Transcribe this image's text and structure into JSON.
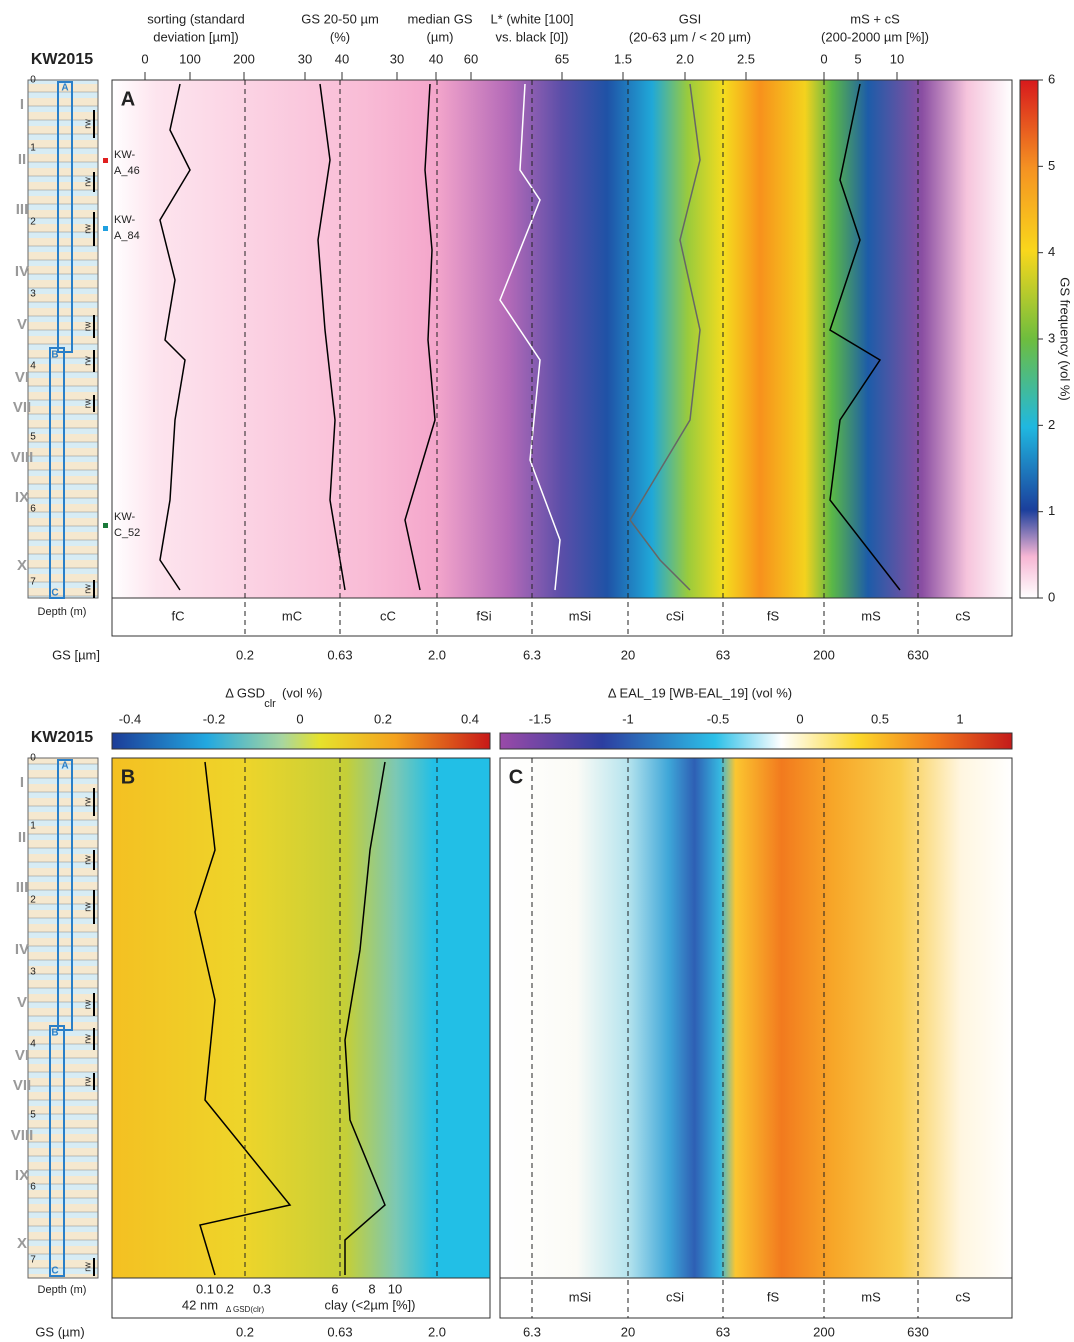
{
  "log": {
    "site": "KW2015",
    "units": [
      "I",
      "II",
      "III",
      "IV",
      "V",
      "VI",
      "VII",
      "VIII",
      "IX",
      "X"
    ],
    "depth_ticks": [
      "0",
      "1",
      "2",
      "3",
      "4",
      "5",
      "6",
      "7"
    ],
    "depth_label": "Depth (m)",
    "rw": "rw",
    "cores": [
      "A",
      "B",
      "C"
    ]
  },
  "panel_a": {
    "letter": "A",
    "headers": [
      {
        "lines": [
          "sorting (standard",
          "deviation [µm])"
        ],
        "ticks": [
          "0",
          "100",
          "200"
        ]
      },
      {
        "lines": [
          "GS 20-50 µm",
          "(%)"
        ],
        "ticks": [
          "30",
          "40"
        ]
      },
      {
        "lines": [
          "median GS",
          "(µm)"
        ],
        "ticks": [
          "30",
          "40"
        ]
      },
      {
        "lines": [
          "L* (white [100]",
          "vs. black [0])"
        ],
        "ticks": [
          "60",
          "65"
        ]
      },
      {
        "lines": [
          "GSI",
          "(20-63 µm / < 20 µm)"
        ],
        "ticks": [
          "1.5",
          "2.0",
          "2.5"
        ]
      },
      {
        "lines": [
          "mS + cS",
          "(200-2000 µm [%])"
        ],
        "ticks": [
          "0",
          "5",
          "10"
        ]
      }
    ],
    "samples": [
      [
        "KW-",
        "A_46"
      ],
      [
        "KW-",
        "A_84"
      ],
      [
        "KW-",
        "C_52"
      ]
    ],
    "classes": [
      "fC",
      "mC",
      "cC",
      "fSi",
      "mSi",
      "cSi",
      "fS",
      "mS",
      "cS"
    ],
    "gs_label": "GS [µm]",
    "gs_ticks": [
      "0.2",
      "0.63",
      "2.0",
      "6.3",
      "20",
      "63",
      "200",
      "630"
    ],
    "colorbar_label": "GS frequency (vol %)",
    "colorbar_ticks": [
      "0",
      "1",
      "2",
      "3",
      "4",
      "5",
      "6"
    ]
  },
  "panel_b": {
    "letter": "B",
    "colorbar_label": "Δ GSD",
    "colorbar_sub": "clr",
    "colorbar_unit": "(vol %)",
    "colorbar_ticks": [
      "-0.4",
      "-0.2",
      "0",
      "0.2",
      "0.4"
    ],
    "curve_ticks": [
      "0.1",
      "0.2",
      "0.3",
      "6",
      "8",
      "10"
    ],
    "curve_label_1": "42 nm",
    "curve_label_1_sub": "Δ GSD(clr)",
    "curve_label_2": "clay (<2µm [%])"
  },
  "panel_c": {
    "letter": "C",
    "colorbar_label": "Δ EAL_19 [WB-EAL_19] (vol %)",
    "colorbar_ticks": [
      "-1.5",
      "-1",
      "-0.5",
      "0",
      "0.5",
      "1"
    ],
    "classes": [
      "mSi",
      "cSi",
      "fS",
      "mS",
      "cS"
    ]
  },
  "bottom_axis": {
    "label": "GS (µm)",
    "ticks": [
      "0.2",
      "0.63",
      "2.0",
      "6.3",
      "20",
      "63",
      "200",
      "630"
    ]
  }
}
